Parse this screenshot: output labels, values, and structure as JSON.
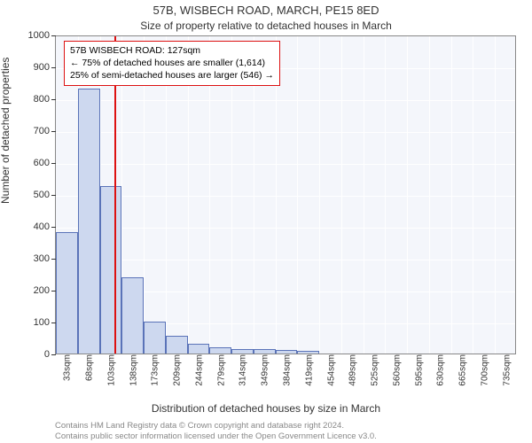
{
  "title_line1": "57B, WISBECH ROAD, MARCH, PE15 8ED",
  "title_line2": "Size of property relative to detached houses in March",
  "ylabel": "Number of detached properties",
  "xlabel": "Distribution of detached houses by size in March",
  "footer_line1": "Contains HM Land Registry data © Crown copyright and database right 2024.",
  "footer_line2": "Contains public sector information licensed under the Open Government Licence v3.0.",
  "chart": {
    "type": "histogram",
    "plot_bg": "#f4f6fb",
    "grid_color": "#ffffff",
    "axis_color": "#888888",
    "bar_fill": "#cdd8ef",
    "bar_stroke": "#5a73b8",
    "marker_color": "#d11",
    "ylim": [
      0,
      1000
    ],
    "ytick_step": 100,
    "x_categories": [
      "33sqm",
      "68sqm",
      "103sqm",
      "138sqm",
      "173sqm",
      "209sqm",
      "244sqm",
      "279sqm",
      "314sqm",
      "349sqm",
      "384sqm",
      "419sqm",
      "454sqm",
      "489sqm",
      "525sqm",
      "560sqm",
      "595sqm",
      "630sqm",
      "665sqm",
      "700sqm",
      "735sqm"
    ],
    "values": [
      380,
      830,
      525,
      240,
      100,
      55,
      30,
      20,
      15,
      15,
      12,
      8,
      0,
      0,
      0,
      0,
      0,
      0,
      0,
      0,
      0
    ],
    "marker_position": 2.65,
    "annotation": {
      "border_color": "#d11",
      "lines": [
        "57B WISBECH ROAD: 127sqm",
        "← 75% of detached houses are smaller (1,614)",
        "25% of semi-detached houses are larger (546) →"
      ]
    }
  }
}
